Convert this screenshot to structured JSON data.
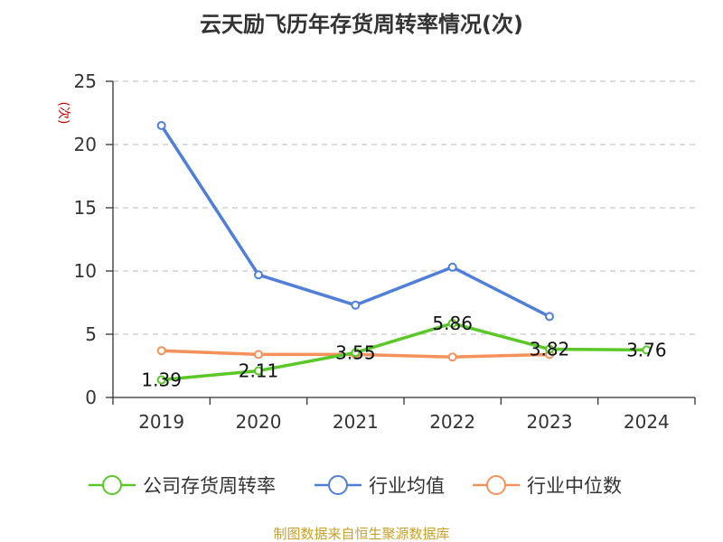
{
  "chart_data": {
    "type": "line",
    "title": "云天励飞历年存货周转率情况(次)",
    "ylabel": "(次)",
    "categories": [
      "2019",
      "2020",
      "2021",
      "2022",
      "2023",
      "2024"
    ],
    "ylim": [
      0,
      25
    ],
    "yticks": [
      "0",
      "5",
      "10",
      "15",
      "20",
      "25"
    ],
    "grid": true,
    "legend_position": "bottom",
    "series": [
      {
        "name": "公司存货周转率",
        "color": "#5ac828",
        "values": [
          1.39,
          2.11,
          3.55,
          5.86,
          3.82,
          3.76
        ],
        "labels": [
          "1.39",
          "2.11",
          "3.55",
          "5.86",
          "3.82",
          "3.76"
        ]
      },
      {
        "name": "行业均值",
        "color": "#4f7fda",
        "values": [
          21.5,
          9.7,
          7.3,
          10.3,
          6.4,
          null
        ]
      },
      {
        "name": "行业中位数",
        "color": "#f5915a",
        "values": [
          3.7,
          3.4,
          3.4,
          3.2,
          3.4,
          null
        ]
      }
    ],
    "source": "制图数据来自恒生聚源数据库",
    "ylabel_color": "#cc0000",
    "source_color": "#c8a028"
  }
}
